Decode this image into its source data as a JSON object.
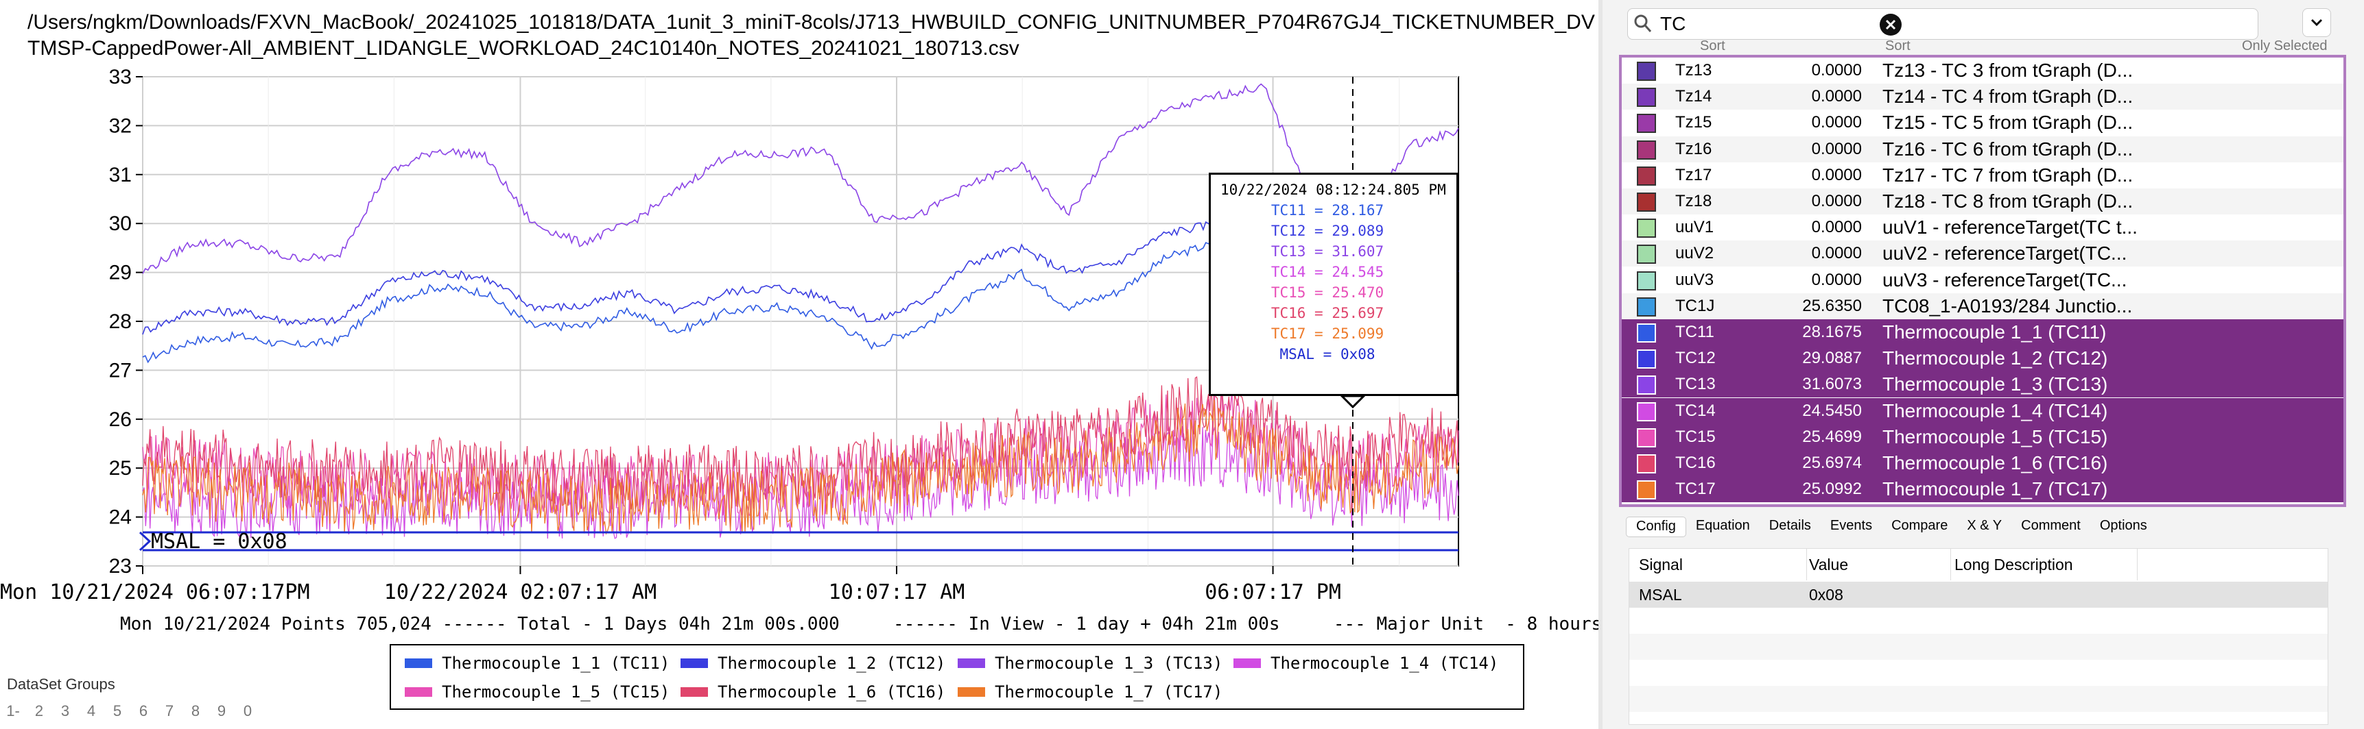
{
  "file_title": "/Users/ngkm/Downloads/FXVN_MacBook/_20241025_101818/DATA_1unit_3_miniT-8cols/J713_HWBUILD_CONFIG_UNITNUMBER_P704R67GJ4_TICKETNUMBER_DVTMSP-CappedPower-All_AMBIENT_LIDANGLE_WORKLOAD_24C10140n_NOTES_20241021_180713.csv",
  "chart_data": {
    "type": "line",
    "ylim": [
      23,
      33
    ],
    "y_ticks": [
      "23",
      "24",
      "25",
      "26",
      "27",
      "28",
      "29",
      "30",
      "31",
      "32",
      "33"
    ],
    "x_ticks": [
      "Mon 10/21/2024 06:07:17PM",
      "10/22/2024 02:07:17 AM",
      "10:07:17 AM",
      "06:07:17 PM"
    ],
    "x_range": [
      "10/21/2024 18:07:17",
      "10/22/2024 22:28:17"
    ],
    "cursor_time": "10/22/2024 08:12:24.805 PM",
    "grid": true,
    "series": [
      {
        "name": "TC11",
        "color": "#2f5be3",
        "values": [
          27.2,
          27.6,
          27.7,
          27.5,
          27.6,
          28.4,
          28.7,
          28.6,
          27.9,
          27.9,
          28.2,
          27.8,
          28.2,
          28.3,
          28.1,
          27.5,
          27.9,
          28.5,
          29.0,
          28.3,
          28.6,
          29.3,
          29.6,
          29.8,
          28.3,
          27.8,
          28.1,
          28.2
        ]
      },
      {
        "name": "TC12",
        "color": "#3a3de0",
        "values": [
          27.8,
          28.2,
          28.2,
          28.0,
          28.0,
          28.8,
          29.0,
          28.9,
          28.3,
          28.3,
          28.6,
          28.2,
          28.6,
          28.7,
          28.5,
          28.0,
          28.4,
          29.2,
          29.5,
          29.0,
          29.2,
          29.8,
          30.0,
          30.1,
          28.8,
          28.3,
          28.9,
          29.0
        ]
      },
      {
        "name": "TC13",
        "color": "#8b44e6",
        "values": [
          29.0,
          29.6,
          29.6,
          29.3,
          29.3,
          31.0,
          31.5,
          31.4,
          30.0,
          29.6,
          30.0,
          30.7,
          31.4,
          31.4,
          31.5,
          30.1,
          30.2,
          30.8,
          31.2,
          30.2,
          31.7,
          32.3,
          32.6,
          32.8,
          30.5,
          30.0,
          31.6,
          31.9
        ]
      },
      {
        "name": "TC14",
        "color": "#d14be3",
        "values": [
          24.4,
          24.3,
          24.2,
          24.3,
          24.2,
          24.2,
          24.3,
          24.3,
          24.2,
          24.2,
          24.2,
          24.3,
          24.2,
          24.3,
          24.2,
          24.3,
          24.6,
          24.7,
          24.9,
          24.9,
          25.0,
          25.2,
          25.3,
          25.0,
          24.5,
          24.4,
          24.5,
          24.5
        ]
      },
      {
        "name": "TC15",
        "color": "#e84fb7",
        "values": [
          25.0,
          25.1,
          24.9,
          24.8,
          24.7,
          24.7,
          24.8,
          24.8,
          24.6,
          24.6,
          24.6,
          24.7,
          24.6,
          24.7,
          24.7,
          24.9,
          25.1,
          25.2,
          25.4,
          25.4,
          25.6,
          25.9,
          26.1,
          25.7,
          25.1,
          25.0,
          25.3,
          25.4
        ]
      },
      {
        "name": "TC16",
        "color": "#e0446b",
        "values": [
          25.2,
          25.3,
          25.1,
          25.0,
          24.9,
          24.9,
          25.0,
          25.0,
          24.8,
          24.8,
          24.8,
          24.9,
          24.8,
          24.9,
          24.9,
          25.1,
          25.3,
          25.4,
          25.6,
          25.6,
          25.8,
          26.1,
          26.3,
          25.9,
          25.3,
          25.2,
          25.6,
          25.6
        ]
      },
      {
        "name": "TC17",
        "color": "#ee7a2a",
        "values": [
          24.7,
          24.6,
          24.5,
          24.5,
          24.3,
          24.4,
          24.5,
          24.4,
          24.3,
          24.3,
          24.3,
          24.4,
          24.3,
          24.4,
          24.4,
          24.6,
          24.8,
          24.9,
          25.1,
          25.1,
          25.3,
          25.6,
          25.8,
          25.3,
          24.8,
          24.7,
          25.0,
          25.1
        ]
      }
    ],
    "digital": {
      "label": "MSAL = 0x08"
    }
  },
  "summary": "Mon 10/21/2024 Points 705,024 ------ Total - 1 Days 04h 21m 00s.000     ------ In View - 1 day + 04h 21m 00s     --- Major Unit  - 8 hours",
  "legend": [
    {
      "label": "Thermocouple 1_1 (TC11)",
      "color": "#2f5be3"
    },
    {
      "label": "Thermocouple 1_2 (TC12)",
      "color": "#3a3de0"
    },
    {
      "label": "Thermocouple 1_3 (TC13)",
      "color": "#8b44e6"
    },
    {
      "label": "Thermocouple 1_4 (TC14)",
      "color": "#d14be3"
    },
    {
      "label": "Thermocouple 1_5 (TC15)",
      "color": "#e84fb7"
    },
    {
      "label": "Thermocouple 1_6 (TC16)",
      "color": "#e0446b"
    },
    {
      "label": "Thermocouple 1_7 (TC17)",
      "color": "#ee7a2a"
    }
  ],
  "tooltip": {
    "time": "10/22/2024 08:12:24.805 PM",
    "rows": [
      {
        "text": "TC11 = 28.167",
        "color": "#2f5be3"
      },
      {
        "text": "TC12 = 29.089",
        "color": "#3a3de0"
      },
      {
        "text": "TC13 = 31.607",
        "color": "#8b44e6"
      },
      {
        "text": "TC14 = 24.545",
        "color": "#d14be3"
      },
      {
        "text": "TC15 = 25.470",
        "color": "#e84fb7"
      },
      {
        "text": "TC16 = 25.697",
        "color": "#e0446b"
      },
      {
        "text": "TC17 = 25.099",
        "color": "#ee7a2a"
      },
      {
        "text": "MSAL = 0x08",
        "color": "#1d2bd0"
      }
    ]
  },
  "dataset_groups": {
    "title": "DataSet Groups",
    "items": [
      "1-",
      "2",
      "3",
      "4",
      "5",
      "6",
      "7",
      "8",
      "9",
      "0"
    ]
  },
  "search": {
    "value": "TC"
  },
  "sort_labels": {
    "left": "Sort",
    "right": "Sort",
    "only_selected": "Only Selected"
  },
  "signals": [
    {
      "name": "Tz13",
      "value": "0.0000",
      "desc": "Tz13 - TC 3 from tGraph (D...",
      "color": "#5a3aa8",
      "selected": false
    },
    {
      "name": "Tz14",
      "value": "0.0000",
      "desc": "Tz14 - TC 4 from tGraph (D...",
      "color": "#7a3ab8",
      "selected": false
    },
    {
      "name": "Tz15",
      "value": "0.0000",
      "desc": "Tz15 - TC 5 from tGraph (D...",
      "color": "#9a3aa8",
      "selected": false
    },
    {
      "name": "Tz16",
      "value": "0.0000",
      "desc": "Tz16 - TC 6 from tGraph (D...",
      "color": "#a8357a",
      "selected": false
    },
    {
      "name": "Tz17",
      "value": "0.0000",
      "desc": "Tz17 - TC 7 from tGraph (D...",
      "color": "#a8354a",
      "selected": false
    },
    {
      "name": "Tz18",
      "value": "0.0000",
      "desc": "Tz18 - TC 8 from tGraph (D...",
      "color": "#a83030",
      "selected": false
    },
    {
      "name": "uuV1",
      "value": "0.0000",
      "desc": "uuV1 - referenceTarget(TC t...",
      "color": "#a8e0a0",
      "selected": false
    },
    {
      "name": "uuV2",
      "value": "0.0000",
      "desc": "uuV2 - referenceTarget(TC...",
      "color": "#a0dca8",
      "selected": false
    },
    {
      "name": "uuV3",
      "value": "0.0000",
      "desc": "uuV3 - referenceTarget(TC...",
      "color": "#a0e0c8",
      "selected": false
    },
    {
      "name": "TC1J",
      "value": "25.6350",
      "desc": "TC08_1-A0193/284 Junctio...",
      "color": "#3a9ae0",
      "selected": false
    },
    {
      "name": "TC11",
      "value": "28.1675",
      "desc": "Thermocouple 1_1 (TC11)",
      "color": "#2f5be3",
      "selected": true
    },
    {
      "name": "TC12",
      "value": "29.0887",
      "desc": "Thermocouple 1_2 (TC12)",
      "color": "#3a3de0",
      "selected": true
    },
    {
      "name": "TC13",
      "value": "31.6073",
      "desc": "Thermocouple 1_3 (TC13)",
      "color": "#8b44e6",
      "selected": true
    },
    {
      "name": "TC14",
      "value": "24.5450",
      "desc": "Thermocouple 1_4 (TC14)",
      "color": "#d14be3",
      "selected": true
    },
    {
      "name": "TC15",
      "value": "25.4699",
      "desc": "Thermocouple 1_5 (TC15)",
      "color": "#e84fb7",
      "selected": true
    },
    {
      "name": "TC16",
      "value": "25.6974",
      "desc": "Thermocouple 1_6 (TC16)",
      "color": "#e0446b",
      "selected": true
    },
    {
      "name": "TC17",
      "value": "25.0992",
      "desc": "Thermocouple 1_7 (TC17)",
      "color": "#ee7a2a",
      "selected": true
    }
  ],
  "tabs": [
    "Config",
    "Equation",
    "Details",
    "Events",
    "Compare",
    "X & Y",
    "Comment",
    "Options"
  ],
  "active_tab": "Config",
  "table": {
    "headers": [
      "Signal",
      "Value",
      "Long Description"
    ],
    "rows": [
      {
        "signal": "MSAL",
        "value": "0x08",
        "desc": ""
      }
    ]
  }
}
